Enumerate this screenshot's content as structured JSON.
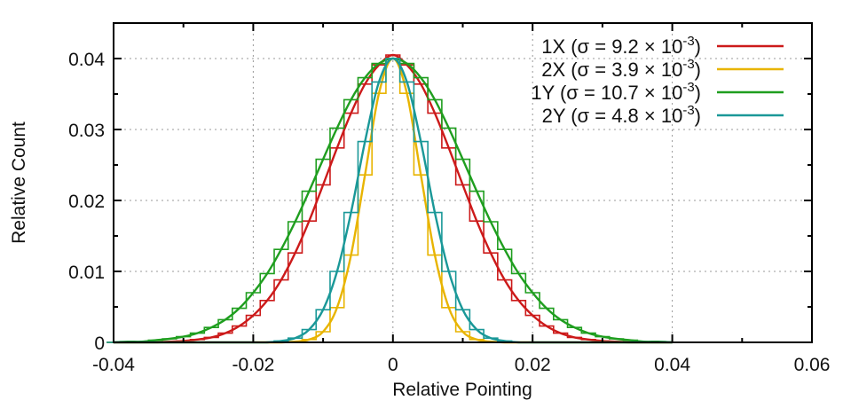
{
  "chart_data": {
    "type": "line",
    "xlabel": "Relative Pointing",
    "ylabel": "Relative Count",
    "xlim": [
      -0.04,
      0.06
    ],
    "ylim": [
      0,
      0.045
    ],
    "xticks": [
      "-0.04",
      "-0.02",
      "0",
      "0.02",
      "0.04",
      "0.06"
    ],
    "yticks": [
      "0",
      "0.01",
      "0.02",
      "0.03",
      "0.04"
    ],
    "grid": true,
    "legend_position": "top-right",
    "style": "histogram steps with smooth fitted curve",
    "x": [
      -0.04,
      -0.038,
      -0.036,
      -0.034,
      -0.032,
      -0.03,
      -0.028,
      -0.026,
      -0.024,
      -0.022,
      -0.02,
      -0.018,
      -0.016,
      -0.014,
      -0.012,
      -0.01,
      -0.008,
      -0.006,
      -0.004,
      -0.002,
      0,
      0.002,
      0.004,
      0.006,
      0.008,
      0.01,
      0.012,
      0.014,
      0.016,
      0.018,
      0.02,
      0.022,
      0.024,
      0.026,
      0.028,
      0.03,
      0.032,
      0.034,
      0.036,
      0.038,
      0.04
    ],
    "series": [
      {
        "name": "1X",
        "legend_text": "1X (σ = 9.2 × 10",
        "legend_exp": "-3",
        "legend_close": ")",
        "color": "#cc1a1a",
        "values": [
          0,
          0,
          0,
          0,
          0.0001,
          0.0002,
          0.0004,
          0.0007,
          0.0013,
          0.0023,
          0.0038,
          0.0059,
          0.0088,
          0.0126,
          0.0171,
          0.0222,
          0.0274,
          0.0323,
          0.0364,
          0.0391,
          0.0405,
          0.0391,
          0.0364,
          0.0323,
          0.0274,
          0.0222,
          0.0171,
          0.0126,
          0.0088,
          0.0059,
          0.0038,
          0.0023,
          0.0013,
          0.0007,
          0.0004,
          0.0002,
          0.0001,
          0,
          0,
          0,
          0
        ]
      },
      {
        "name": "2X",
        "legend_text": "2X (σ = 3.9 × 10",
        "legend_exp": "-3",
        "legend_close": ")",
        "color": "#e8b400",
        "values": [
          0,
          0,
          0,
          0,
          0,
          0,
          0,
          0,
          0,
          0,
          0,
          0,
          0,
          0.0001,
          0.0004,
          0.0015,
          0.0049,
          0.0123,
          0.0236,
          0.0351,
          0.04,
          0.0351,
          0.0236,
          0.0123,
          0.0049,
          0.0015,
          0.0004,
          0.0001,
          0,
          0,
          0,
          0,
          0,
          0,
          0,
          0,
          0,
          0,
          0,
          0,
          0
        ]
      },
      {
        "name": "1Y",
        "legend_text": "1Y (σ = 10.7 × 10",
        "legend_exp": "-3",
        "legend_close": ")",
        "color": "#1f9e1f",
        "values": [
          0,
          0.0001,
          0.0001,
          0.0003,
          0.0005,
          0.0008,
          0.0013,
          0.0021,
          0.0032,
          0.0048,
          0.007,
          0.0097,
          0.0131,
          0.017,
          0.0213,
          0.0258,
          0.0302,
          0.0342,
          0.0373,
          0.0393,
          0.04,
          0.0393,
          0.0373,
          0.0342,
          0.0302,
          0.0258,
          0.0213,
          0.017,
          0.0131,
          0.0097,
          0.007,
          0.0048,
          0.0032,
          0.0021,
          0.0013,
          0.0008,
          0.0005,
          0.0003,
          0.0001,
          0.0001,
          0
        ]
      },
      {
        "name": "2Y",
        "legend_text": "2Y (σ = 4.8 × 10",
        "legend_exp": "-3",
        "legend_close": ")",
        "color": "#1a9898",
        "values": [
          0,
          0,
          0,
          0,
          0,
          0,
          0,
          0,
          0,
          0,
          0,
          0,
          0.0002,
          0.0006,
          0.0018,
          0.0046,
          0.01,
          0.0183,
          0.0283,
          0.0367,
          0.04,
          0.0367,
          0.0283,
          0.0183,
          0.01,
          0.0046,
          0.0018,
          0.0006,
          0.0002,
          0,
          0,
          0,
          0,
          0,
          0,
          0,
          0,
          0,
          0,
          0,
          0
        ]
      }
    ]
  }
}
